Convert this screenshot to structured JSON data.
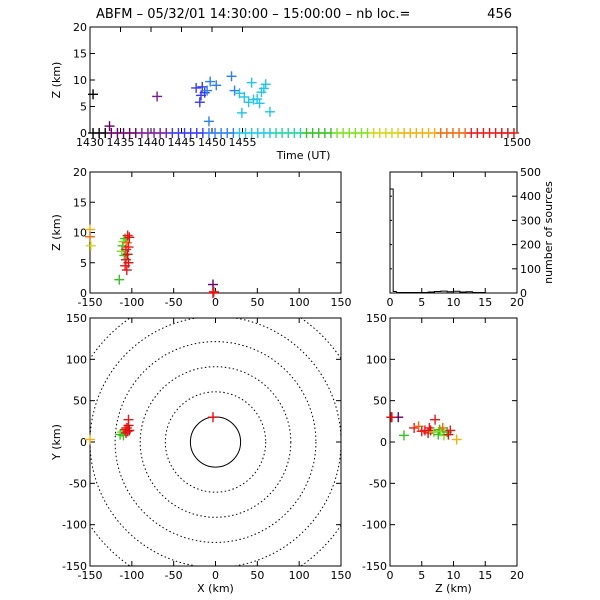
{
  "title": {
    "prefix": "ABFM – 05/32/01 14:30:00 – 15:00:00 – nb loc.=",
    "count": "456"
  },
  "colors": {
    "axes": "#000000",
    "rings": "#000000",
    "palette": [
      "#000000",
      "#660066",
      "#7a1a9a",
      "#3a3aee",
      "#2d7ff0",
      "#22c4e8",
      "#22d4a0",
      "#35c025",
      "#7ee020",
      "#d4d416",
      "#f0b014",
      "#ee6a10",
      "#e51a1a",
      "#e01010"
    ]
  },
  "chart_data": [
    {
      "name": "time-height",
      "type": "scatter",
      "xlabel": "Time (UT)",
      "ylabel": "Z (km)",
      "xlim": [
        1430,
        1500
      ],
      "ylim": [
        0,
        20
      ],
      "xticks": [
        1430,
        1435,
        1440,
        1445,
        1450,
        1455,
        1500
      ],
      "yticks": [
        0,
        5,
        10,
        15,
        20
      ],
      "marker": "plus",
      "color_by": "time",
      "points": [
        {
          "x": 1430.5,
          "y": 7.3
        },
        {
          "x": 1433.2,
          "y": 1.3
        },
        {
          "x": 1441.0,
          "y": 6.9
        },
        {
          "x": 1447.4,
          "y": 8.5
        },
        {
          "x": 1448.0,
          "y": 5.8
        },
        {
          "x": 1448.2,
          "y": 7.1
        },
        {
          "x": 1448.4,
          "y": 8.7
        },
        {
          "x": 1448.8,
          "y": 7.6
        },
        {
          "x": 1449.2,
          "y": 8.0
        },
        {
          "x": 1449.5,
          "y": 2.2
        },
        {
          "x": 1449.7,
          "y": 9.7
        },
        {
          "x": 1450.7,
          "y": 9.0
        },
        {
          "x": 1453.2,
          "y": 10.7
        },
        {
          "x": 1453.7,
          "y": 8.0
        },
        {
          "x": 1454.5,
          "y": 7.5
        },
        {
          "x": 1454.9,
          "y": 3.8
        },
        {
          "x": 1455.3,
          "y": 6.8
        },
        {
          "x": 1456.0,
          "y": 5.8
        },
        {
          "x": 1456.5,
          "y": 9.5
        },
        {
          "x": 1456.8,
          "y": 6.3
        },
        {
          "x": 1457.4,
          "y": 6.4
        },
        {
          "x": 1457.8,
          "y": 5.6
        },
        {
          "x": 1458.1,
          "y": 7.7
        },
        {
          "x": 1458.5,
          "y": 8.4
        },
        {
          "x": 1458.8,
          "y": 9.2
        },
        {
          "x": 1459.5,
          "y": 4.0
        }
      ],
      "baseline": {
        "y": 0,
        "x_start": 1430.5,
        "x_end": 1499.5,
        "step": 1.0
      }
    },
    {
      "name": "x-height",
      "type": "scatter",
      "xlabel": "",
      "ylabel": "Z (km)",
      "xlim": [
        -150,
        150
      ],
      "ylim": [
        0,
        20
      ],
      "xticks": [
        -150,
        -100,
        -50,
        0,
        50,
        100,
        150
      ],
      "yticks": [
        0,
        5,
        10,
        15,
        20
      ],
      "marker": "plus",
      "points": [
        {
          "x": -150,
          "y": 10.5,
          "c": 10
        },
        {
          "x": -150,
          "y": 9.3,
          "c": 11
        },
        {
          "x": -149,
          "y": 7.8,
          "c": 9
        },
        {
          "x": -115,
          "y": 2.2,
          "c": 7
        },
        {
          "x": -112,
          "y": 6.9,
          "c": 8
        },
        {
          "x": -111,
          "y": 7.8,
          "c": 7
        },
        {
          "x": -110,
          "y": 8.5,
          "c": 8
        },
        {
          "x": -109,
          "y": 6.2,
          "c": 7
        },
        {
          "x": -108,
          "y": 9.0,
          "c": 7
        },
        {
          "x": -108,
          "y": 4.5,
          "c": 12
        },
        {
          "x": -107,
          "y": 7.2,
          "c": 12
        },
        {
          "x": -107,
          "y": 5.5,
          "c": 12
        },
        {
          "x": -106,
          "y": 8.3,
          "c": 11
        },
        {
          "x": -106,
          "y": 3.8,
          "c": 12
        },
        {
          "x": -105,
          "y": 9.5,
          "c": 12
        },
        {
          "x": -105,
          "y": 6.4,
          "c": 13
        },
        {
          "x": -104,
          "y": 5.0,
          "c": 13
        },
        {
          "x": -104,
          "y": 7.6,
          "c": 12
        },
        {
          "x": -103,
          "y": 9.2,
          "c": 13
        },
        {
          "x": -3,
          "y": 1.4,
          "c": 1
        },
        {
          "x": -3,
          "y": 0.0,
          "c": 13
        },
        {
          "x": -2,
          "y": 0.2,
          "c": 12
        }
      ]
    },
    {
      "name": "height-histogram",
      "type": "line",
      "xlabel": "",
      "ylabel": "number of sources",
      "xlim": [
        0,
        20
      ],
      "ylim": [
        0,
        500
      ],
      "xticks": [
        0,
        5,
        10,
        15,
        20
      ],
      "yticks": [
        0,
        100,
        200,
        300,
        400,
        500
      ],
      "axis_side": "right",
      "x": [
        0,
        0.5,
        1,
        2,
        3,
        4,
        5,
        6,
        7,
        8,
        9,
        10,
        11,
        12,
        13,
        14,
        15,
        16,
        17,
        18,
        19,
        20
      ],
      "values": [
        430,
        6,
        2,
        2,
        2,
        2,
        2,
        4,
        6,
        8,
        5,
        7,
        4,
        5,
        2,
        2,
        0,
        0,
        0,
        0,
        0,
        0
      ]
    },
    {
      "name": "plan-view",
      "type": "scatter",
      "xlabel": "X (km)",
      "ylabel": "Y (km)",
      "xlim": [
        -150,
        150
      ],
      "ylim": [
        -150,
        150
      ],
      "xticks": [
        -150,
        -100,
        -50,
        0,
        50,
        100,
        150
      ],
      "yticks": [
        -150,
        -100,
        -50,
        0,
        50,
        100,
        150
      ],
      "range_rings_km": [
        30,
        60,
        90,
        120,
        150,
        180
      ],
      "marker": "plus",
      "points": [
        {
          "x": -150,
          "y": 3,
          "c": 10
        },
        {
          "x": -114,
          "y": 9,
          "c": 7
        },
        {
          "x": -112,
          "y": 12,
          "c": 8
        },
        {
          "x": -110,
          "y": 8,
          "c": 7
        },
        {
          "x": -108,
          "y": 15,
          "c": 12
        },
        {
          "x": -107,
          "y": 11,
          "c": 13
        },
        {
          "x": -106,
          "y": 17,
          "c": 12
        },
        {
          "x": -105,
          "y": 13,
          "c": 12
        },
        {
          "x": -104,
          "y": 20,
          "c": 13
        },
        {
          "x": -104,
          "y": 27,
          "c": 12
        },
        {
          "x": -103,
          "y": 14,
          "c": 13
        },
        {
          "x": -3,
          "y": 30,
          "c": 13
        }
      ]
    },
    {
      "name": "height-y",
      "type": "scatter",
      "xlabel": "Z (km)",
      "ylabel": "",
      "xlim": [
        0,
        20
      ],
      "ylim": [
        -150,
        150
      ],
      "xticks": [
        0,
        5,
        10,
        15,
        20
      ],
      "yticks": [
        -150,
        -100,
        -50,
        0,
        50,
        100,
        150
      ],
      "marker": "plus",
      "points": [
        {
          "x": 0.3,
          "y": 30,
          "c": 12
        },
        {
          "x": 1.3,
          "y": 30,
          "c": 1
        },
        {
          "x": 0.2,
          "y": 30,
          "c": 13
        },
        {
          "x": 2.2,
          "y": 8,
          "c": 7
        },
        {
          "x": 3.8,
          "y": 17,
          "c": 12
        },
        {
          "x": 4.5,
          "y": 19,
          "c": 11
        },
        {
          "x": 5.0,
          "y": 13,
          "c": 12
        },
        {
          "x": 5.5,
          "y": 14,
          "c": 12
        },
        {
          "x": 6.0,
          "y": 11,
          "c": 13
        },
        {
          "x": 6.2,
          "y": 17,
          "c": 12
        },
        {
          "x": 6.4,
          "y": 14,
          "c": 13
        },
        {
          "x": 6.9,
          "y": 12,
          "c": 8
        },
        {
          "x": 7.1,
          "y": 27,
          "c": 12
        },
        {
          "x": 7.6,
          "y": 9,
          "c": 7
        },
        {
          "x": 7.8,
          "y": 15,
          "c": 7
        },
        {
          "x": 8.0,
          "y": 13,
          "c": 8
        },
        {
          "x": 8.3,
          "y": 17,
          "c": 11
        },
        {
          "x": 8.5,
          "y": 8,
          "c": 8
        },
        {
          "x": 9.0,
          "y": 12,
          "c": 7
        },
        {
          "x": 9.2,
          "y": 9,
          "c": 13
        },
        {
          "x": 9.5,
          "y": 14,
          "c": 12
        },
        {
          "x": 10.5,
          "y": 3,
          "c": 10
        }
      ]
    }
  ]
}
